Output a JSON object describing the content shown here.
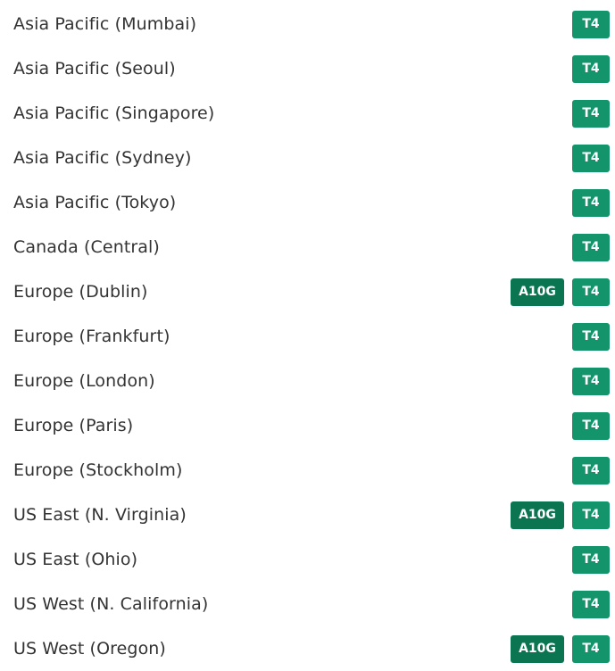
{
  "regions": [
    {
      "name": "Asia Pacific (Mumbai)",
      "badges": [
        "T4"
      ]
    },
    {
      "name": "Asia Pacific (Seoul)",
      "badges": [
        "T4"
      ]
    },
    {
      "name": "Asia Pacific (Singapore)",
      "badges": [
        "T4"
      ]
    },
    {
      "name": "Asia Pacific (Sydney)",
      "badges": [
        "T4"
      ]
    },
    {
      "name": "Asia Pacific (Tokyo)",
      "badges": [
        "T4"
      ]
    },
    {
      "name": "Canada (Central)",
      "badges": [
        "T4"
      ]
    },
    {
      "name": "Europe (Dublin)",
      "badges": [
        "A10G",
        "T4"
      ]
    },
    {
      "name": "Europe (Frankfurt)",
      "badges": [
        "T4"
      ]
    },
    {
      "name": "Europe (London)",
      "badges": [
        "T4"
      ]
    },
    {
      "name": "Europe (Paris)",
      "badges": [
        "T4"
      ]
    },
    {
      "name": "Europe (Stockholm)",
      "badges": [
        "T4"
      ]
    },
    {
      "name": "US East (N. Virginia)",
      "badges": [
        "A10G",
        "T4"
      ]
    },
    {
      "name": "US East (Ohio)",
      "badges": [
        "T4"
      ]
    },
    {
      "name": "US West (N. California)",
      "badges": [
        "T4"
      ]
    },
    {
      "name": "US West (Oregon)",
      "badges": [
        "A10G",
        "T4"
      ]
    }
  ],
  "colors": {
    "t4_badge": "#14946a",
    "a10g_badge": "#0b7552",
    "text": "#333333"
  }
}
